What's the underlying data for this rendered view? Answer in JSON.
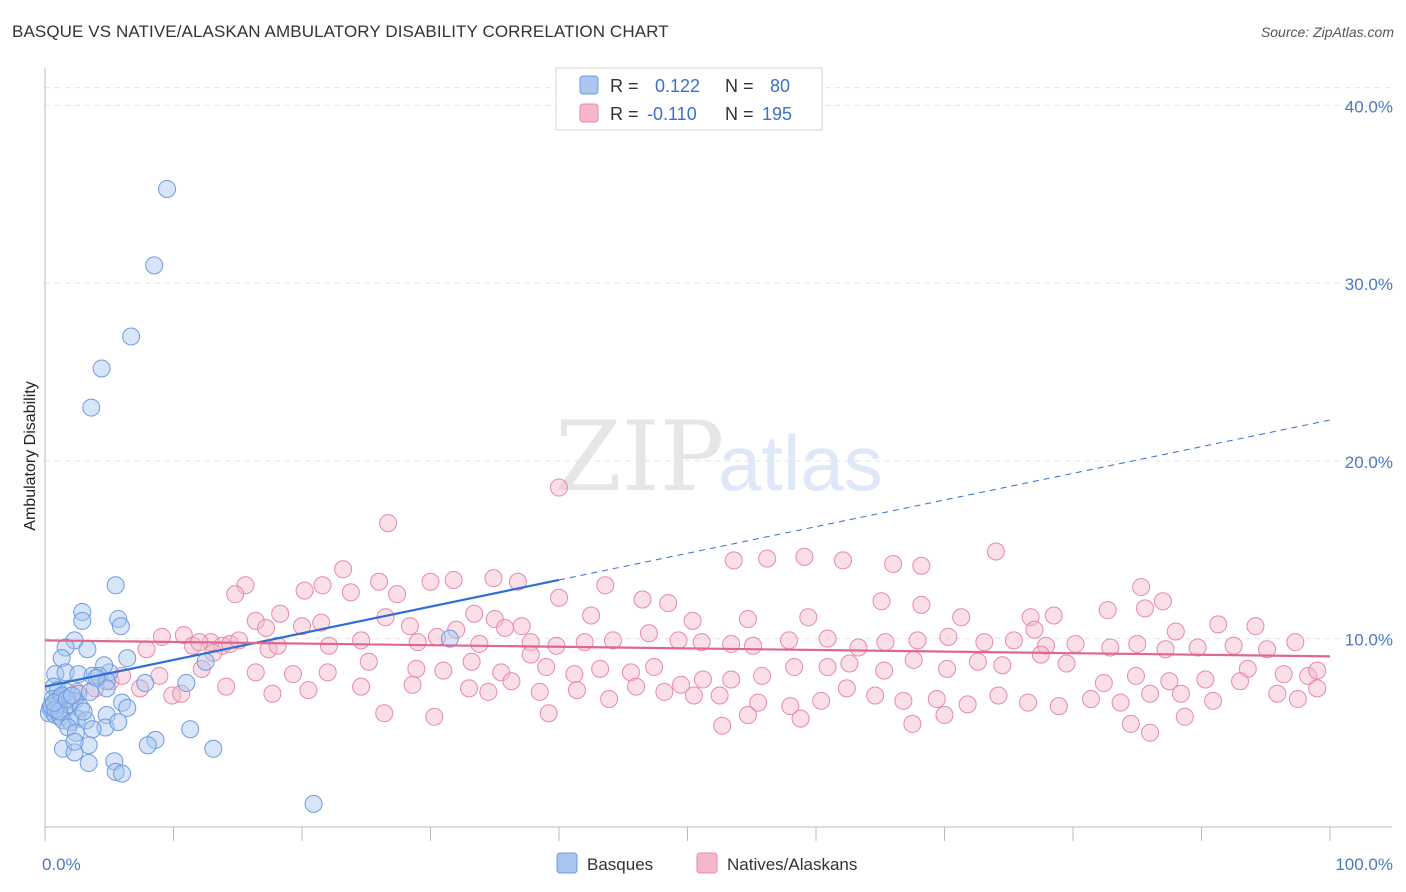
{
  "title": "BASQUE VS NATIVE/ALASKAN AMBULATORY DISABILITY CORRELATION CHART",
  "source": "Source: ZipAtlas.com",
  "watermark": {
    "zip": "ZIP",
    "atlas": "atlas"
  },
  "colors": {
    "blue_fill": "#a9c6f0",
    "blue_stroke": "#6d9be0",
    "blue_line": "#2f6fd1",
    "pink_fill": "#f5b8cb",
    "pink_stroke": "#e889a8",
    "pink_line": "#e0668e",
    "tick_text": "#4a78c8"
  },
  "legend": {
    "rows": [
      {
        "r_label": "R =",
        "r_value": "0.122",
        "n_label": "N =",
        "n_value": "80",
        "series": "Basques"
      },
      {
        "r_label": "R =",
        "r_value": "-0.110",
        "n_label": "N =",
        "n_value": "195",
        "series": "Natives/Alaskans"
      }
    ]
  },
  "bottom_legend": [
    "Basques",
    "Natives/Alaskans"
  ],
  "chart_data": {
    "type": "scatter",
    "title": "BASQUE VS NATIVE/ALASKAN AMBULATORY DISABILITY CORRELATION CHART",
    "xlabel": "",
    "ylabel": "Ambulatory Disability",
    "xlim": [
      0,
      100
    ],
    "ylim": [
      -0.6,
      41.6
    ],
    "x_tick_labels": [
      "0.0%",
      "100.0%"
    ],
    "y_ticks": [
      10,
      20,
      30,
      40
    ],
    "y_tick_labels": [
      "10.0%",
      "20.0%",
      "30.0%",
      "40.0%"
    ],
    "series": [
      {
        "name": "Basques",
        "r": 0.122,
        "n": 80,
        "trend": {
          "x0": 0,
          "y0": 7.3,
          "x1": 40,
          "y1": 13.3,
          "dashed_to_x": 100,
          "dashed_to_y": 22.3
        },
        "points": [
          [
            9.5,
            35.3
          ],
          [
            8.5,
            31.0
          ],
          [
            6.7,
            27.0
          ],
          [
            4.4,
            25.2
          ],
          [
            3.6,
            23.0
          ],
          [
            5.5,
            13.0
          ],
          [
            2.9,
            11.5
          ],
          [
            2.9,
            11.0
          ],
          [
            5.7,
            11.1
          ],
          [
            5.9,
            10.7
          ],
          [
            2.3,
            9.9
          ],
          [
            1.6,
            9.5
          ],
          [
            3.3,
            9.4
          ],
          [
            6.4,
            8.9
          ],
          [
            12.5,
            8.7
          ],
          [
            1.3,
            8.9
          ],
          [
            0.8,
            8.0
          ],
          [
            1.6,
            8.1
          ],
          [
            2.6,
            8.0
          ],
          [
            3.7,
            7.9
          ],
          [
            5.0,
            8.1
          ],
          [
            4.6,
            8.5
          ],
          [
            4.2,
            7.9
          ],
          [
            4.8,
            7.6
          ],
          [
            7.8,
            7.5
          ],
          [
            11.0,
            7.5
          ],
          [
            0.7,
            7.3
          ],
          [
            1.0,
            7.1
          ],
          [
            1.7,
            7.0
          ],
          [
            2.6,
            6.9
          ],
          [
            3.5,
            7.0
          ],
          [
            4.8,
            7.2
          ],
          [
            2.3,
            6.5
          ],
          [
            1.9,
            6.3
          ],
          [
            2.8,
            6.1
          ],
          [
            0.6,
            6.6
          ],
          [
            0.9,
            6.5
          ],
          [
            1.3,
            6.7
          ],
          [
            0.4,
            6.1
          ],
          [
            0.6,
            5.9
          ],
          [
            1.0,
            6.3
          ],
          [
            1.5,
            6.0
          ],
          [
            0.3,
            5.8
          ],
          [
            0.8,
            5.7
          ],
          [
            1.2,
            5.6
          ],
          [
            1.4,
            5.4
          ],
          [
            2.0,
            5.3
          ],
          [
            2.5,
            5.5
          ],
          [
            3.2,
            5.4
          ],
          [
            4.8,
            5.7
          ],
          [
            6.0,
            6.4
          ],
          [
            6.4,
            6.1
          ],
          [
            4.7,
            5.0
          ],
          [
            5.7,
            5.3
          ],
          [
            1.8,
            5.0
          ],
          [
            2.4,
            4.7
          ],
          [
            3.7,
            4.9
          ],
          [
            8.6,
            4.3
          ],
          [
            8.0,
            4.0
          ],
          [
            11.3,
            4.9
          ],
          [
            13.1,
            3.8
          ],
          [
            1.4,
            3.8
          ],
          [
            2.3,
            3.6
          ],
          [
            3.4,
            4.0
          ],
          [
            5.4,
            3.1
          ],
          [
            3.4,
            3.0
          ],
          [
            5.5,
            2.5
          ],
          [
            6.0,
            2.4
          ],
          [
            20.9,
            0.7
          ],
          [
            31.5,
            10.0
          ],
          [
            2.3,
            4.2
          ],
          [
            1.3,
            6.8
          ],
          [
            0.5,
            6.2
          ],
          [
            0.8,
            6.0
          ],
          [
            1.1,
            5.9
          ],
          [
            0.7,
            6.4
          ],
          [
            1.7,
            6.6
          ],
          [
            2.1,
            6.8
          ],
          [
            3.0,
            5.9
          ],
          [
            4.0,
            7.8
          ]
        ]
      },
      {
        "name": "Natives/Alaskans",
        "r": -0.11,
        "n": 195,
        "trend": {
          "x0": 0,
          "y0": 9.9,
          "x1": 100,
          "y1": 9.0
        },
        "points": [
          [
            40.0,
            18.5
          ],
          [
            26.7,
            16.5
          ],
          [
            74.0,
            14.9
          ],
          [
            56.2,
            14.5
          ],
          [
            53.6,
            14.4
          ],
          [
            59.1,
            14.6
          ],
          [
            62.1,
            14.4
          ],
          [
            66.0,
            14.2
          ],
          [
            68.2,
            14.1
          ],
          [
            23.2,
            13.9
          ],
          [
            34.9,
            13.4
          ],
          [
            31.8,
            13.3
          ],
          [
            36.8,
            13.2
          ],
          [
            26.0,
            13.2
          ],
          [
            30.0,
            13.2
          ],
          [
            15.6,
            13.0
          ],
          [
            21.6,
            13.0
          ],
          [
            20.2,
            12.7
          ],
          [
            23.8,
            12.6
          ],
          [
            27.4,
            12.5
          ],
          [
            14.8,
            12.5
          ],
          [
            43.6,
            13.0
          ],
          [
            40.0,
            12.3
          ],
          [
            46.5,
            12.2
          ],
          [
            48.5,
            12.0
          ],
          [
            87.0,
            12.1
          ],
          [
            85.3,
            12.9
          ],
          [
            65.1,
            12.1
          ],
          [
            68.2,
            11.9
          ],
          [
            85.6,
            11.7
          ],
          [
            82.7,
            11.6
          ],
          [
            78.5,
            11.3
          ],
          [
            76.7,
            11.2
          ],
          [
            71.3,
            11.2
          ],
          [
            59.4,
            11.2
          ],
          [
            54.7,
            11.1
          ],
          [
            50.4,
            11.0
          ],
          [
            42.5,
            11.3
          ],
          [
            33.4,
            11.4
          ],
          [
            35.0,
            11.1
          ],
          [
            16.4,
            11.0
          ],
          [
            18.3,
            11.4
          ],
          [
            26.5,
            11.2
          ],
          [
            21.5,
            10.9
          ],
          [
            28.4,
            10.7
          ],
          [
            37.1,
            10.7
          ],
          [
            35.8,
            10.6
          ],
          [
            32.0,
            10.5
          ],
          [
            20.0,
            10.7
          ],
          [
            17.2,
            10.6
          ],
          [
            10.8,
            10.2
          ],
          [
            12.9,
            9.8
          ],
          [
            13.8,
            9.6
          ],
          [
            14.4,
            9.7
          ],
          [
            15.1,
            9.9
          ],
          [
            9.1,
            10.1
          ],
          [
            7.9,
            9.4
          ],
          [
            11.5,
            9.6
          ],
          [
            12.0,
            9.8
          ],
          [
            13.1,
            9.2
          ],
          [
            17.4,
            9.4
          ],
          [
            18.1,
            9.6
          ],
          [
            22.1,
            9.6
          ],
          [
            24.6,
            9.9
          ],
          [
            29.0,
            9.8
          ],
          [
            30.5,
            10.1
          ],
          [
            33.8,
            9.7
          ],
          [
            37.8,
            9.8
          ],
          [
            39.8,
            9.6
          ],
          [
            42.0,
            9.8
          ],
          [
            44.2,
            9.9
          ],
          [
            47.0,
            10.3
          ],
          [
            49.3,
            9.9
          ],
          [
            51.1,
            9.8
          ],
          [
            53.4,
            9.7
          ],
          [
            55.1,
            9.6
          ],
          [
            57.9,
            9.9
          ],
          [
            60.9,
            10.0
          ],
          [
            63.3,
            9.5
          ],
          [
            65.4,
            9.8
          ],
          [
            67.9,
            9.9
          ],
          [
            70.3,
            10.1
          ],
          [
            73.1,
            9.8
          ],
          [
            75.4,
            9.9
          ],
          [
            77.9,
            9.6
          ],
          [
            80.2,
            9.7
          ],
          [
            82.9,
            9.5
          ],
          [
            85.0,
            9.7
          ],
          [
            87.2,
            9.4
          ],
          [
            89.7,
            9.5
          ],
          [
            92.5,
            9.6
          ],
          [
            95.1,
            9.4
          ],
          [
            97.3,
            9.8
          ],
          [
            94.2,
            10.7
          ],
          [
            91.3,
            10.8
          ],
          [
            88.0,
            10.4
          ],
          [
            93.6,
            8.3
          ],
          [
            96.4,
            8.0
          ],
          [
            98.3,
            7.9
          ],
          [
            99.0,
            8.2
          ],
          [
            93.0,
            7.6
          ],
          [
            90.3,
            7.7
          ],
          [
            87.5,
            7.6
          ],
          [
            84.9,
            7.9
          ],
          [
            82.4,
            7.5
          ],
          [
            79.5,
            8.6
          ],
          [
            77.5,
            9.1
          ],
          [
            74.5,
            8.5
          ],
          [
            72.6,
            8.7
          ],
          [
            70.2,
            8.3
          ],
          [
            67.6,
            8.8
          ],
          [
            65.3,
            8.2
          ],
          [
            62.6,
            8.6
          ],
          [
            60.9,
            8.4
          ],
          [
            58.3,
            8.4
          ],
          [
            55.8,
            7.9
          ],
          [
            53.4,
            7.7
          ],
          [
            51.2,
            7.7
          ],
          [
            49.5,
            7.4
          ],
          [
            47.4,
            8.4
          ],
          [
            45.6,
            8.1
          ],
          [
            43.2,
            8.3
          ],
          [
            41.2,
            8.0
          ],
          [
            39.0,
            8.4
          ],
          [
            37.8,
            9.1
          ],
          [
            35.5,
            8.1
          ],
          [
            33.2,
            8.7
          ],
          [
            31.0,
            8.2
          ],
          [
            28.9,
            8.3
          ],
          [
            25.2,
            8.7
          ],
          [
            22.0,
            8.1
          ],
          [
            19.3,
            8.0
          ],
          [
            16.4,
            8.1
          ],
          [
            12.2,
            8.3
          ],
          [
            8.9,
            7.9
          ],
          [
            5.1,
            7.6
          ],
          [
            6.0,
            7.9
          ],
          [
            3.9,
            7.2
          ],
          [
            2.5,
            7.0
          ],
          [
            1.2,
            6.6
          ],
          [
            2.0,
            6.5
          ],
          [
            7.4,
            7.2
          ],
          [
            9.9,
            6.8
          ],
          [
            10.6,
            6.9
          ],
          [
            14.1,
            7.3
          ],
          [
            17.7,
            6.9
          ],
          [
            20.5,
            7.1
          ],
          [
            24.6,
            7.3
          ],
          [
            28.6,
            7.4
          ],
          [
            33.0,
            7.2
          ],
          [
            36.3,
            7.6
          ],
          [
            38.5,
            7.0
          ],
          [
            41.4,
            7.1
          ],
          [
            43.9,
            6.6
          ],
          [
            46.0,
            7.3
          ],
          [
            48.2,
            7.0
          ],
          [
            50.5,
            6.8
          ],
          [
            52.5,
            6.8
          ],
          [
            55.5,
            6.4
          ],
          [
            58.0,
            6.2
          ],
          [
            60.4,
            6.5
          ],
          [
            62.4,
            7.2
          ],
          [
            64.6,
            6.8
          ],
          [
            66.8,
            6.5
          ],
          [
            69.4,
            6.6
          ],
          [
            71.8,
            6.3
          ],
          [
            74.2,
            6.8
          ],
          [
            76.5,
            6.4
          ],
          [
            78.9,
            6.2
          ],
          [
            81.4,
            6.6
          ],
          [
            83.7,
            6.4
          ],
          [
            86.0,
            6.9
          ],
          [
            88.4,
            6.9
          ],
          [
            90.9,
            6.5
          ],
          [
            95.9,
            6.9
          ],
          [
            97.5,
            6.6
          ],
          [
            99.0,
            7.2
          ],
          [
            84.5,
            5.2
          ],
          [
            88.7,
            5.6
          ],
          [
            86.0,
            4.7
          ],
          [
            70.0,
            5.7
          ],
          [
            67.5,
            5.2
          ],
          [
            58.8,
            5.5
          ],
          [
            54.7,
            5.7
          ],
          [
            52.7,
            5.1
          ],
          [
            39.2,
            5.8
          ],
          [
            26.4,
            5.8
          ],
          [
            30.3,
            5.6
          ],
          [
            34.5,
            7.0
          ],
          [
            77.0,
            10.5
          ]
        ]
      }
    ]
  }
}
